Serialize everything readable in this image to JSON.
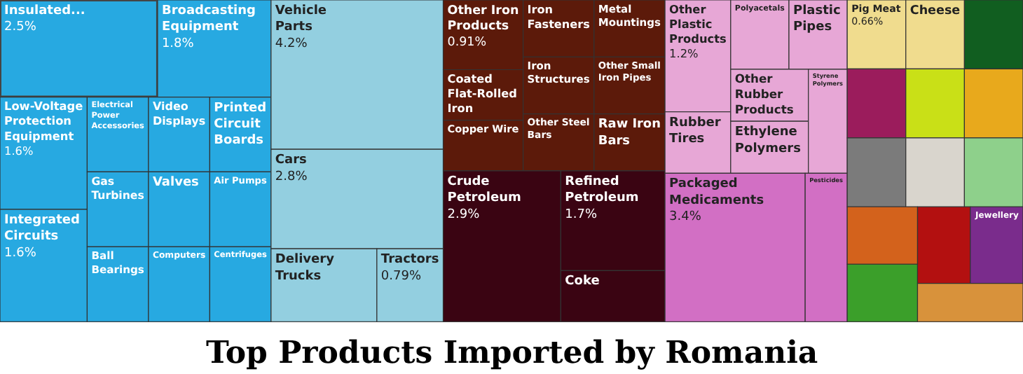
{
  "chart_data": {
    "type": "other",
    "title": "Top Products Imported by Romania",
    "categories": [
      "Insulated...",
      "Broadcasting Equipment",
      "Low-Voltage Protection Equipment",
      "Integrated Circuits",
      "Electrical Power Accessories",
      "Video Displays",
      "Printed Circuit Boards",
      "Gas Turbines",
      "Ball Bearings",
      "Valves",
      "Air Pumps",
      "Computers",
      "Centrifuges",
      "Other Iron Products",
      "Coated Flat-Rolled Iron",
      "Copper Wire",
      "Iron Fasteners",
      "Metal Mountings",
      "Iron Structures",
      "Other Steel Bars",
      "Other Small Iron Pipes",
      "Raw Iron Bars",
      "Vehicle Parts",
      "Cars",
      "Tractors",
      "Delivery Trucks",
      "Packaged Medicaments",
      "Pesticides",
      "Other Plastic Products",
      "Rubber Tires",
      "Polyacetals",
      "Plastic Pipes",
      "Other Rubber Products",
      "Ethylene Polymers",
      "Styrene Polymers",
      null,
      "Crude Petroleum",
      "Refined Petroleum",
      "Coke",
      null,
      "Pig Meat",
      "Cheese",
      null,
      null,
      null,
      null,
      null,
      null,
      null,
      null,
      "Jewellery",
      null
    ],
    "values": [
      2.5,
      1.8,
      1.6,
      1.6,
      null,
      null,
      null,
      null,
      null,
      null,
      null,
      null,
      null,
      0.91,
      null,
      null,
      null,
      null,
      null,
      null,
      null,
      null,
      4.2,
      2.8,
      0.79,
      null,
      3.4,
      null,
      1.2,
      null,
      null,
      null,
      null,
      null,
      null,
      null,
      2.9,
      1.7,
      null,
      null,
      0.66,
      null,
      null,
      null,
      null,
      null,
      null,
      null,
      null,
      null,
      null,
      null
    ],
    "value_labels": [
      "2.5%",
      "1.8%",
      "1.6%",
      "1.6%",
      null,
      null,
      null,
      null,
      null,
      null,
      null,
      null,
      null,
      "0.91%",
      null,
      null,
      null,
      null,
      null,
      null,
      null,
      null,
      "4.2%",
      "2.8%",
      "0.79%",
      null,
      "3.4%",
      null,
      "1.2%",
      null,
      null,
      null,
      null,
      null,
      null,
      null,
      "2.9%",
      "1.7%",
      null,
      null,
      "0.66%",
      null,
      null,
      null,
      null,
      null,
      null,
      null,
      null,
      null,
      null,
      null
    ],
    "colors": [
      "#27a9e1",
      "#27a9e1",
      "#27a9e1",
      "#27a9e1",
      "#27a9e1",
      "#27a9e1",
      "#27a9e1",
      "#27a9e1",
      "#27a9e1",
      "#27a9e1",
      "#27a9e1",
      "#27a9e1",
      "#27a9e1",
      "#5c1a0a",
      "#5c1a0a",
      "#5c1a0a",
      "#5c1a0a",
      "#5c1a0a",
      "#5c1a0a",
      "#5c1a0a",
      "#5c1a0a",
      "#5c1a0a",
      "#93cfe0",
      "#93cfe0",
      "#93cfe0",
      "#93cfe0",
      "#d26fc4",
      "#d26fc4",
      "#e7a7d6",
      "#e7a7d6",
      "#e7a7d6",
      "#e7a7d6",
      "#e7a7d6",
      "#e7a7d6",
      "#e7a7d6",
      "#115e20",
      "#3a0412",
      "#3a0412",
      "#3a0412",
      "#9b1c5c",
      "#f0dc8e",
      "#f0dc8e",
      "#c9e017",
      "#e8a91c",
      "#7b7b7b",
      "#d9d5cd",
      "#8ed08b",
      "#d3621c",
      "#3b9f2a",
      "#b31010",
      "#7a2c8c",
      "#d8923b"
    ]
  }
}
